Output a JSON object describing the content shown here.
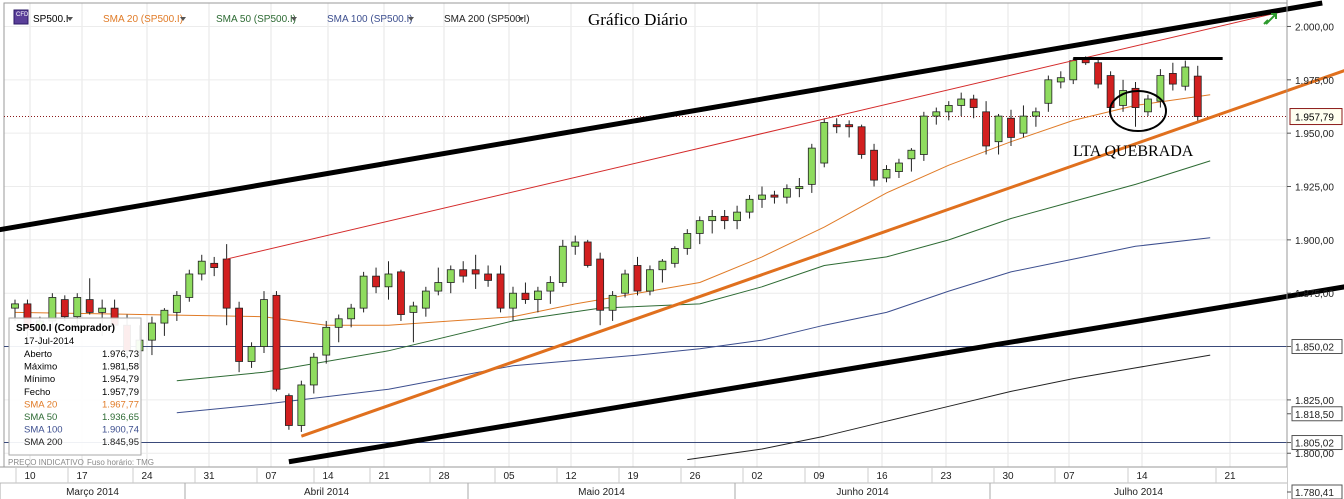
{
  "chart_data": {
    "type": "candlestick",
    "title": "Gráfico Diário",
    "annotation": "LTA QUEBRADA",
    "footer_left": "PREÇO INDICATIVO",
    "timezone_label": "Fuso horário: TMG",
    "symbol_icon_text": "CFD",
    "legend": [
      {
        "label": "SP500.I",
        "color": "#000000"
      },
      {
        "label": "SMA 20 (SP500.I)",
        "color": "#e07b27"
      },
      {
        "label": "SMA 50 (SP500.I)",
        "color": "#2e6b34"
      },
      {
        "label": "SMA 100 (SP500.I)",
        "color": "#3d4f8f"
      },
      {
        "label": "SMA 200 (SP500.I)",
        "color": "#222222"
      }
    ],
    "colors": {
      "up": "#8fdc5f",
      "down": "#d21f1f",
      "sma20": "#e07b27",
      "sma50": "#2e6b34",
      "sma100": "#3d4f8f",
      "sma200": "#222222",
      "channel": "#000000",
      "trendline": "#e0701e",
      "redline": "#d42a2a",
      "last_price_bg": "#fffff0"
    },
    "y_axis": {
      "min": 1780.41,
      "max": 2011,
      "ticks": [
        "2.000,00",
        "1.975,00",
        "1.950,00",
        "1.925,00",
        "1.900,00",
        "1.875,00",
        "1.850,02",
        "1.825,00",
        "1.818,50",
        "1.805,02",
        "1.800,00",
        "1.780,41"
      ],
      "tick_values": [
        2000,
        1975,
        1950,
        1925,
        1900,
        1875,
        1850.02,
        1825,
        1818.5,
        1805.02,
        1800,
        1780.41
      ],
      "last_price": "1.957,79",
      "last_price_value": 1957.79,
      "hlines": [
        1850.02,
        1805.02
      ]
    },
    "x_axis": {
      "day_labels": [
        "10",
        "17",
        "24",
        "31",
        "07",
        "14",
        "21",
        "28",
        "05",
        "12",
        "19",
        "26",
        "02",
        "09",
        "16",
        "23",
        "30",
        "07",
        "14",
        "21"
      ],
      "months": [
        "Março 2014",
        "Abril 2014",
        "Maio 2014",
        "Junho 2014",
        "Julho 2014"
      ]
    },
    "info_box": {
      "title": "SP500.I (Comprador)",
      "date": "17-Jul-2014",
      "rows": [
        {
          "label": "Aberto",
          "value": "1.976,73",
          "color": "#000000"
        },
        {
          "label": "Máximo",
          "value": "1.981,58",
          "color": "#000000"
        },
        {
          "label": "Mínimo",
          "value": "1.954,79",
          "color": "#000000"
        },
        {
          "label": "Fecho",
          "value": "1.957,79",
          "color": "#000000"
        },
        {
          "label": "SMA 20",
          "value": "1.967,77",
          "color": "#e07b27"
        },
        {
          "label": "SMA 50",
          "value": "1.936,65",
          "color": "#2e6b34"
        },
        {
          "label": "SMA 100",
          "value": "1.900,74",
          "color": "#3d4f8f"
        },
        {
          "label": "SMA 200",
          "value": "1.845,95",
          "color": "#222222"
        }
      ]
    },
    "candles": [
      {
        "o": 1868,
        "h": 1872,
        "l": 1862,
        "c": 1870
      },
      {
        "o": 1870,
        "h": 1872,
        "l": 1855,
        "c": 1858
      },
      {
        "o": 1858,
        "h": 1864,
        "l": 1848,
        "c": 1862
      },
      {
        "o": 1862,
        "h": 1875,
        "l": 1858,
        "c": 1873
      },
      {
        "o": 1872,
        "h": 1874,
        "l": 1862,
        "c": 1864
      },
      {
        "o": 1864,
        "h": 1875,
        "l": 1860,
        "c": 1873
      },
      {
        "o": 1872,
        "h": 1882,
        "l": 1865,
        "c": 1866
      },
      {
        "o": 1866,
        "h": 1872,
        "l": 1855,
        "c": 1868
      },
      {
        "o": 1868,
        "h": 1872,
        "l": 1858,
        "c": 1860
      },
      {
        "o": 1860,
        "h": 1865,
        "l": 1845,
        "c": 1848
      },
      {
        "o": 1848,
        "h": 1860,
        "l": 1840,
        "c": 1853
      },
      {
        "o": 1853,
        "h": 1864,
        "l": 1846,
        "c": 1861
      },
      {
        "o": 1861,
        "h": 1868,
        "l": 1855,
        "c": 1867
      },
      {
        "o": 1866,
        "h": 1876,
        "l": 1862,
        "c": 1874
      },
      {
        "o": 1873,
        "h": 1886,
        "l": 1871,
        "c": 1884
      },
      {
        "o": 1884,
        "h": 1893,
        "l": 1881,
        "c": 1890
      },
      {
        "o": 1889,
        "h": 1892,
        "l": 1883,
        "c": 1887
      },
      {
        "o": 1891,
        "h": 1898,
        "l": 1860,
        "c": 1868
      },
      {
        "o": 1868,
        "h": 1871,
        "l": 1838,
        "c": 1843
      },
      {
        "o": 1843,
        "h": 1852,
        "l": 1840,
        "c": 1850
      },
      {
        "o": 1850,
        "h": 1876,
        "l": 1847,
        "c": 1872
      },
      {
        "o": 1874,
        "h": 1876,
        "l": 1829,
        "c": 1830
      },
      {
        "o": 1827,
        "h": 1828,
        "l": 1811,
        "c": 1813
      },
      {
        "o": 1813,
        "h": 1834,
        "l": 1810,
        "c": 1832
      },
      {
        "o": 1832,
        "h": 1847,
        "l": 1828,
        "c": 1845
      },
      {
        "o": 1846,
        "h": 1862,
        "l": 1842,
        "c": 1859
      },
      {
        "o": 1859,
        "h": 1865,
        "l": 1852,
        "c": 1863
      },
      {
        "o": 1863,
        "h": 1870,
        "l": 1859,
        "c": 1868
      },
      {
        "o": 1868,
        "h": 1885,
        "l": 1866,
        "c": 1883
      },
      {
        "o": 1883,
        "h": 1887,
        "l": 1875,
        "c": 1878
      },
      {
        "o": 1878,
        "h": 1890,
        "l": 1872,
        "c": 1884
      },
      {
        "o": 1885,
        "h": 1886,
        "l": 1862,
        "c": 1865
      },
      {
        "o": 1866,
        "h": 1871,
        "l": 1852,
        "c": 1869
      },
      {
        "o": 1868,
        "h": 1878,
        "l": 1864,
        "c": 1876
      },
      {
        "o": 1876,
        "h": 1887,
        "l": 1874,
        "c": 1880
      },
      {
        "o": 1880,
        "h": 1888,
        "l": 1875,
        "c": 1886
      },
      {
        "o": 1886,
        "h": 1890,
        "l": 1880,
        "c": 1883
      },
      {
        "o": 1886,
        "h": 1893,
        "l": 1877,
        "c": 1884
      },
      {
        "o": 1884,
        "h": 1888,
        "l": 1878,
        "c": 1881
      },
      {
        "o": 1884,
        "h": 1888,
        "l": 1866,
        "c": 1868
      },
      {
        "o": 1868,
        "h": 1878,
        "l": 1862,
        "c": 1875
      },
      {
        "o": 1875,
        "h": 1880,
        "l": 1870,
        "c": 1872
      },
      {
        "o": 1872,
        "h": 1878,
        "l": 1866,
        "c": 1876
      },
      {
        "o": 1876,
        "h": 1883,
        "l": 1870,
        "c": 1880
      },
      {
        "o": 1880,
        "h": 1900,
        "l": 1878,
        "c": 1897
      },
      {
        "o": 1897,
        "h": 1902,
        "l": 1893,
        "c": 1899
      },
      {
        "o": 1899,
        "h": 1900,
        "l": 1887,
        "c": 1888
      },
      {
        "o": 1891,
        "h": 1894,
        "l": 1860,
        "c": 1867
      },
      {
        "o": 1867,
        "h": 1876,
        "l": 1862,
        "c": 1874
      },
      {
        "o": 1875,
        "h": 1886,
        "l": 1873,
        "c": 1884
      },
      {
        "o": 1888,
        "h": 1892,
        "l": 1874,
        "c": 1876
      },
      {
        "o": 1876,
        "h": 1888,
        "l": 1874,
        "c": 1886
      },
      {
        "o": 1886,
        "h": 1891,
        "l": 1880,
        "c": 1890
      },
      {
        "o": 1889,
        "h": 1897,
        "l": 1887,
        "c": 1896
      },
      {
        "o": 1896,
        "h": 1905,
        "l": 1893,
        "c": 1903
      },
      {
        "o": 1903,
        "h": 1911,
        "l": 1898,
        "c": 1909
      },
      {
        "o": 1909,
        "h": 1914,
        "l": 1903,
        "c": 1911
      },
      {
        "o": 1911,
        "h": 1914,
        "l": 1905,
        "c": 1909
      },
      {
        "o": 1909,
        "h": 1916,
        "l": 1905,
        "c": 1913
      },
      {
        "o": 1913,
        "h": 1921,
        "l": 1910,
        "c": 1919
      },
      {
        "o": 1919,
        "h": 1925,
        "l": 1915,
        "c": 1921
      },
      {
        "o": 1921,
        "h": 1923,
        "l": 1917,
        "c": 1920
      },
      {
        "o": 1920,
        "h": 1926,
        "l": 1917,
        "c": 1924
      },
      {
        "o": 1924,
        "h": 1929,
        "l": 1920,
        "c": 1925
      },
      {
        "o": 1926,
        "h": 1945,
        "l": 1922,
        "c": 1943
      },
      {
        "o": 1936,
        "h": 1957,
        "l": 1934,
        "c": 1955
      },
      {
        "o": 1954,
        "h": 1957,
        "l": 1950,
        "c": 1953
      },
      {
        "o": 1954,
        "h": 1956,
        "l": 1948,
        "c": 1953
      },
      {
        "o": 1953,
        "h": 1954,
        "l": 1938,
        "c": 1940
      },
      {
        "o": 1942,
        "h": 1945,
        "l": 1925,
        "c": 1928
      },
      {
        "o": 1929,
        "h": 1935,
        "l": 1927,
        "c": 1933
      },
      {
        "o": 1932,
        "h": 1938,
        "l": 1929,
        "c": 1936
      },
      {
        "o": 1938,
        "h": 1943,
        "l": 1932,
        "c": 1942
      },
      {
        "o": 1940,
        "h": 1960,
        "l": 1937,
        "c": 1958
      },
      {
        "o": 1958,
        "h": 1962,
        "l": 1954,
        "c": 1960
      },
      {
        "o": 1960,
        "h": 1965,
        "l": 1956,
        "c": 1963
      },
      {
        "o": 1963,
        "h": 1969,
        "l": 1958,
        "c": 1966
      },
      {
        "o": 1966,
        "h": 1968,
        "l": 1957,
        "c": 1962
      },
      {
        "o": 1960,
        "h": 1965,
        "l": 1940,
        "c": 1944
      },
      {
        "o": 1946,
        "h": 1959,
        "l": 1940,
        "c": 1958
      },
      {
        "o": 1957,
        "h": 1961,
        "l": 1944,
        "c": 1948
      },
      {
        "o": 1950,
        "h": 1963,
        "l": 1948,
        "c": 1958
      },
      {
        "o": 1958,
        "h": 1962,
        "l": 1953,
        "c": 1960
      },
      {
        "o": 1964,
        "h": 1977,
        "l": 1960,
        "c": 1975
      },
      {
        "o": 1974,
        "h": 1979,
        "l": 1971,
        "c": 1976
      },
      {
        "o": 1975,
        "h": 1985,
        "l": 1973,
        "c": 1984
      },
      {
        "o": 1985,
        "h": 1986,
        "l": 1982,
        "c": 1983
      },
      {
        "o": 1983,
        "h": 1985,
        "l": 1971,
        "c": 1973
      },
      {
        "o": 1977,
        "h": 1979,
        "l": 1960,
        "c": 1962
      },
      {
        "o": 1963,
        "h": 1975,
        "l": 1960,
        "c": 1970
      },
      {
        "o": 1971,
        "h": 1974,
        "l": 1953,
        "c": 1962
      },
      {
        "o": 1960,
        "h": 1968,
        "l": 1958,
        "c": 1966
      },
      {
        "o": 1965,
        "h": 1980,
        "l": 1962,
        "c": 1977
      },
      {
        "o": 1978,
        "h": 1983,
        "l": 1970,
        "c": 1973
      },
      {
        "o": 1972,
        "h": 1984,
        "l": 1970,
        "c": 1981
      },
      {
        "o": 1976.73,
        "h": 1981.58,
        "l": 1954.79,
        "c": 1957.79
      }
    ],
    "sma20": [
      [
        0,
        1866
      ],
      [
        10,
        1865
      ],
      [
        20,
        1864
      ],
      [
        25,
        1860
      ],
      [
        30,
        1860
      ],
      [
        40,
        1864
      ],
      [
        45,
        1870
      ],
      [
        50,
        1875
      ],
      [
        55,
        1880
      ],
      [
        60,
        1892
      ],
      [
        65,
        1906
      ],
      [
        70,
        1922
      ],
      [
        75,
        1935
      ],
      [
        80,
        1946
      ],
      [
        85,
        1956
      ],
      [
        90,
        1963
      ],
      [
        96,
        1968
      ]
    ],
    "sma50": [
      [
        13,
        1834
      ],
      [
        20,
        1838
      ],
      [
        30,
        1848
      ],
      [
        40,
        1862
      ],
      [
        47,
        1868
      ],
      [
        55,
        1870
      ],
      [
        60,
        1878
      ],
      [
        65,
        1888
      ],
      [
        70,
        1892
      ],
      [
        75,
        1900
      ],
      [
        80,
        1910
      ],
      [
        85,
        1918
      ],
      [
        90,
        1926
      ],
      [
        96,
        1937
      ]
    ],
    "sma100": [
      [
        13,
        1819
      ],
      [
        20,
        1823
      ],
      [
        30,
        1830
      ],
      [
        40,
        1841
      ],
      [
        50,
        1846
      ],
      [
        55,
        1849
      ],
      [
        60,
        1853
      ],
      [
        65,
        1860
      ],
      [
        70,
        1866
      ],
      [
        75,
        1876
      ],
      [
        80,
        1885
      ],
      [
        85,
        1891
      ],
      [
        90,
        1897
      ],
      [
        96,
        1901
      ]
    ],
    "sma200": [
      [
        54,
        1797
      ],
      [
        60,
        1802
      ],
      [
        65,
        1808
      ],
      [
        70,
        1815
      ],
      [
        75,
        1822
      ],
      [
        80,
        1829
      ],
      [
        85,
        1835
      ],
      [
        90,
        1840
      ],
      [
        96,
        1846
      ]
    ],
    "channel_upper": [
      [
        -2,
        1904
      ],
      [
        105,
        2011
      ]
    ],
    "channel_lower": [
      [
        22,
        1796
      ],
      [
        112,
        1883
      ]
    ],
    "red_line": [
      [
        17,
        1891
      ],
      [
        104,
        2010
      ]
    ],
    "trendline": [
      [
        23,
        1808
      ],
      [
        112,
        1990
      ]
    ],
    "resistance": [
      [
        85,
        1985
      ],
      [
        97,
        1985
      ]
    ]
  }
}
